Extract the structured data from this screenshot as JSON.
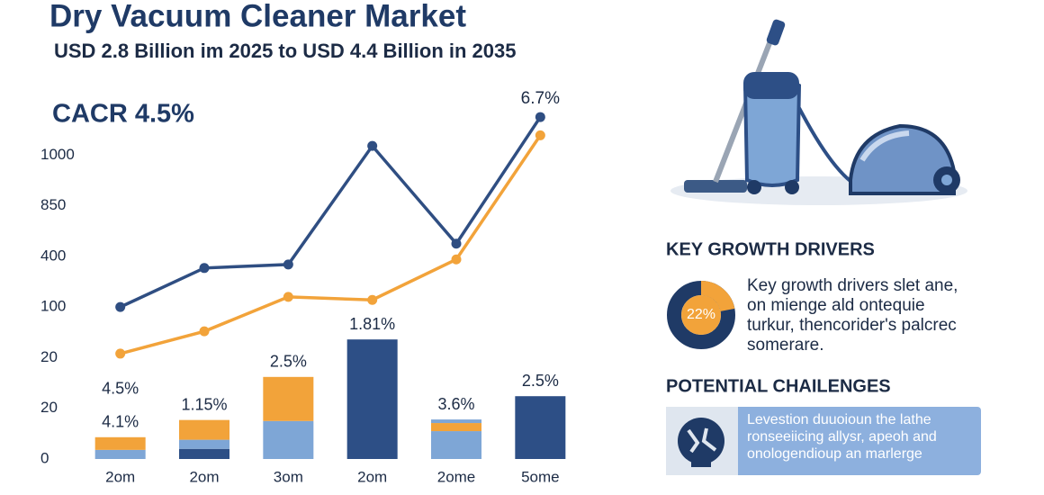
{
  "chart_data": {
    "type": "bar_line",
    "title": "Dry Vacuum Cleaner Market",
    "subtitle": "USD 2.8 Billion im 2025 to USD 4.4 Billion in 2035",
    "annotation": "CACR 4.5%",
    "categories": [
      "2om",
      "2om",
      "3om",
      "2om",
      "2ome",
      "5ome"
    ],
    "ylim": [
      0,
      7
    ],
    "yticks": [
      0,
      {
        "value": 1,
        "label": "20"
      },
      {
        "value": 2,
        "label": "20"
      },
      {
        "value": 3,
        "label": "100"
      },
      {
        "value": 4,
        "label": "400"
      },
      {
        "value": 5,
        "label": "850"
      },
      {
        "value": 6,
        "label": "1000"
      }
    ],
    "grid": false,
    "series": [
      {
        "color": "#2d4f86",
        "values": [
          null,
          0.2,
          null,
          2.36,
          null,
          1.24
        ]
      },
      {
        "color": "#7ea6d6",
        "values": [
          0.18,
          0.18,
          0.75,
          null,
          0.55,
          null
        ]
      },
      {
        "color": "#f2a33a",
        "values": [
          0.25,
          0.39,
          0.87,
          null,
          0.16,
          null
        ]
      },
      {
        "color": "#7ea6d6",
        "values": [
          null,
          null,
          null,
          null,
          0.07,
          null
        ]
      }
    ],
    "bar_labels": [
      [
        "4.1%",
        "4.5%"
      ],
      [
        "1.15%"
      ],
      [
        "2.5%"
      ],
      [
        "1.81%"
      ],
      [
        "3.6%"
      ],
      [
        "2.5%"
      ]
    ],
    "lines": [
      {
        "color": "#2f4e82",
        "values": [
          3.0,
          3.77,
          3.84,
          6.18,
          4.25,
          6.75
        ]
      },
      {
        "color": "#f2a33a",
        "values": [
          2.08,
          2.52,
          3.2,
          3.14,
          3.94,
          6.39
        ]
      }
    ],
    "line_end_label": "6.7%"
  },
  "key_growth_drivers": {
    "heading": "KEY GROWTH DRIVERS",
    "donut": {
      "value": 22,
      "label": "22%"
    },
    "lines": [
      "Key growth drivers slet ane,",
      "on mienge ald ontequie",
      "turkur, thencorider's palcrec",
      "somerare."
    ]
  },
  "potential_challenges": {
    "heading": "POTENTIAL CHAILENGES",
    "lines": [
      "Levestion duuoioun the lathe",
      "ronseeiicing allysr, apeoh and",
      "onologendioup an marlerge"
    ]
  }
}
